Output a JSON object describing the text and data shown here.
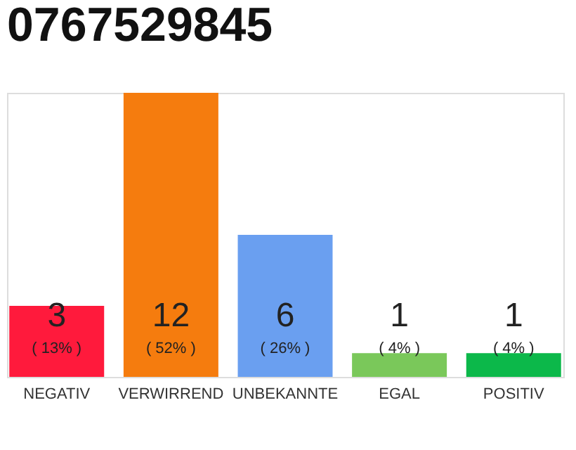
{
  "chart_data": {
    "type": "bar",
    "title": "0767529845",
    "categories": [
      "NEGATIV",
      "VERWIRREND",
      "UNBEKANNTE",
      "EGAL",
      "POSITIV"
    ],
    "values": [
      3,
      12,
      6,
      1,
      1
    ],
    "colors": [
      "#ff1a3c",
      "#f57c0e",
      "#6a9ff0",
      "#7ac85a",
      "#0cb84a"
    ],
    "ylim": [
      0,
      12
    ],
    "tick_labels": "x",
    "data_labels": true,
    "annotations": [
      "( 13% )",
      "( 52% )",
      "( 26% )",
      "( 4% )",
      "( 4% )"
    ]
  }
}
